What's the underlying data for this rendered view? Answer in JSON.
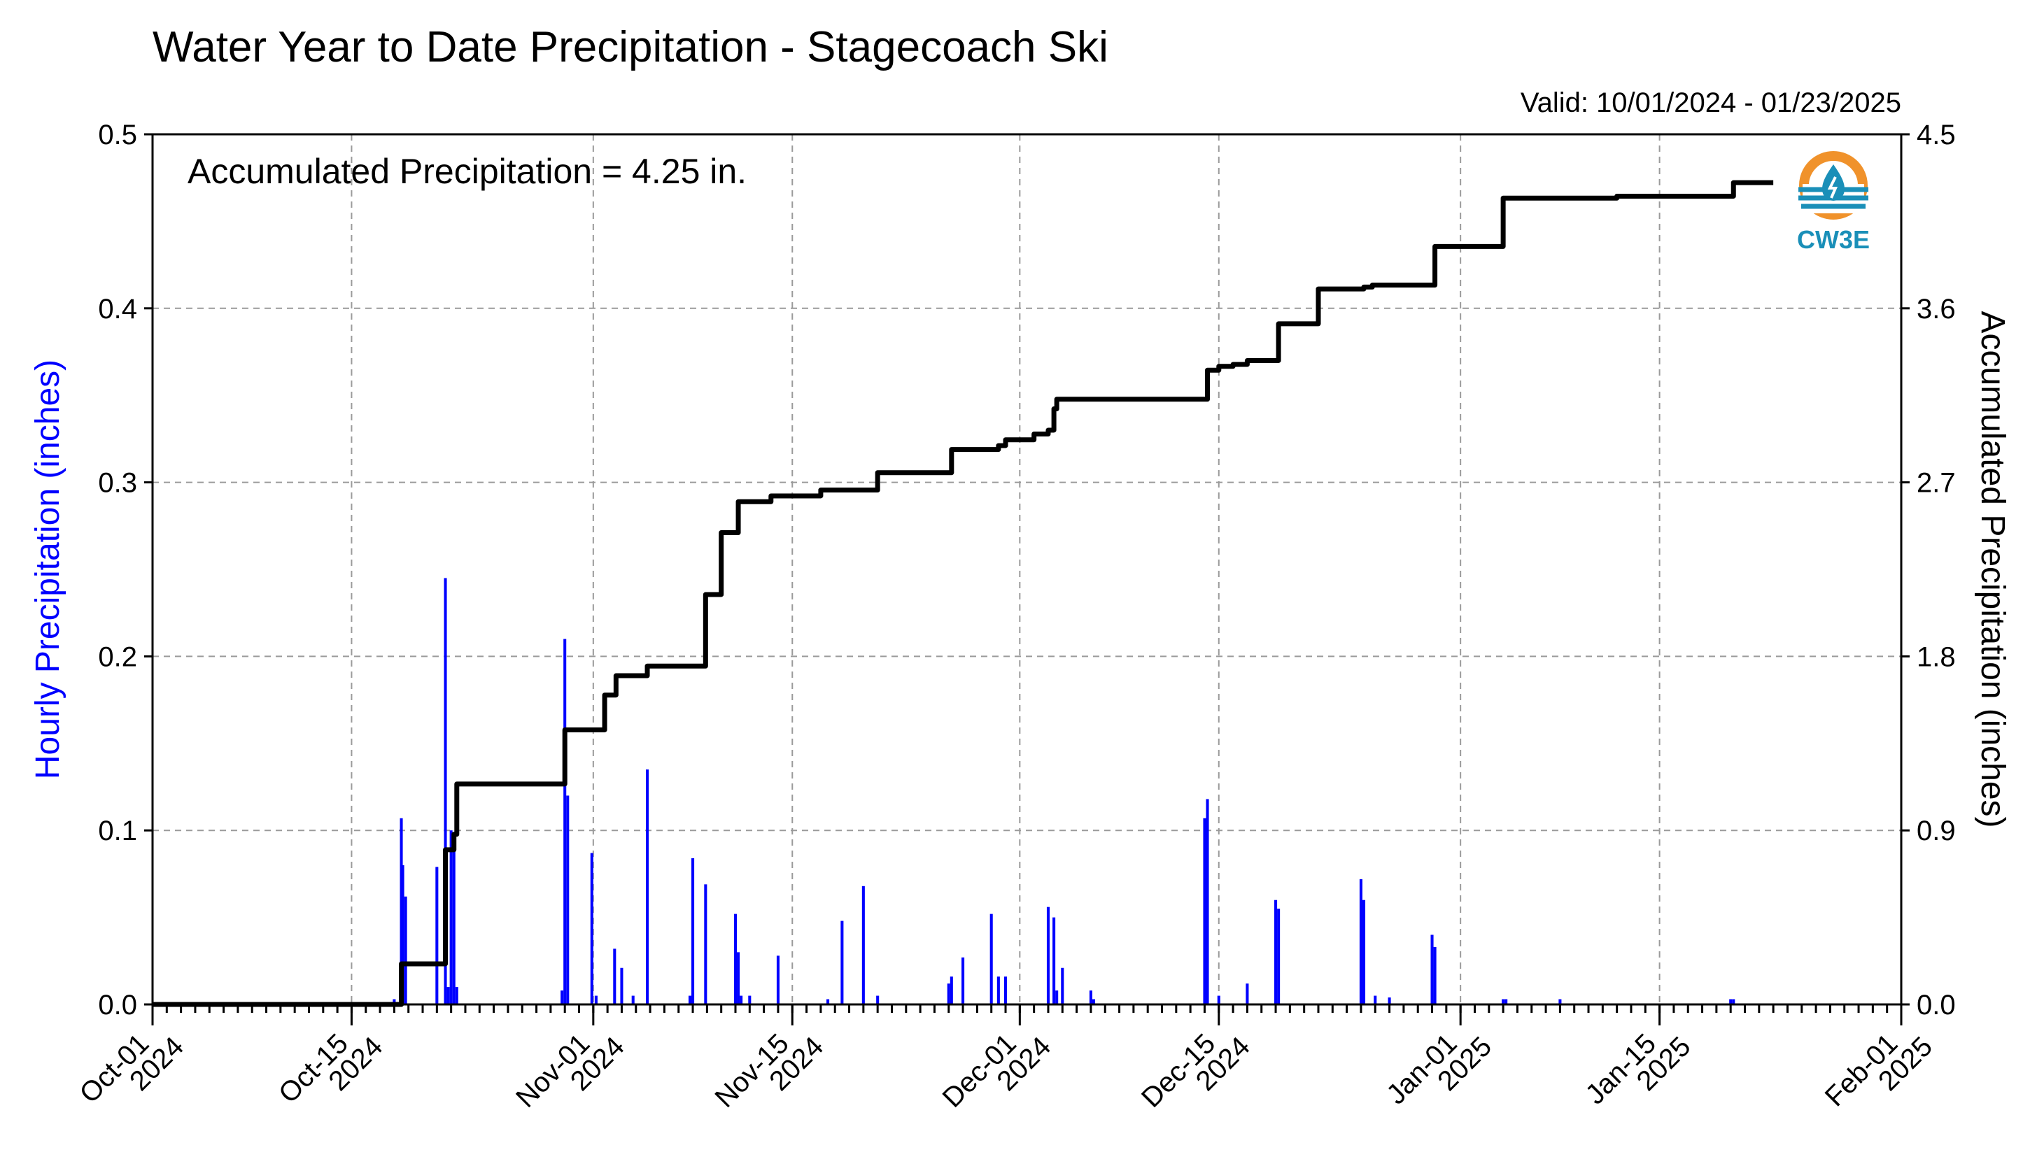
{
  "chart_data": {
    "type": "bar+line",
    "title": "Water Year to Date Precipitation - Stagecoach Ski",
    "subtitle": "Valid: 10/01/2024 - 01/23/2025",
    "annotation": "Accumulated Precipitation = 4.25 in.",
    "ylabel_left": "Hourly Precipitation (inches)",
    "ylabel_right": "Accumulated Precipitation (inches)",
    "ylim_left": [
      0,
      0.5
    ],
    "ylim_right": [
      0,
      4.5
    ],
    "yticks_left": [
      "0.0",
      "0.1",
      "0.2",
      "0.3",
      "0.4",
      "0.5"
    ],
    "yticks_right": [
      "0.0",
      "0.9",
      "1.8",
      "2.7",
      "3.6",
      "4.5"
    ],
    "xlim_days": [
      0,
      123
    ],
    "xticks": [
      {
        "day": 0,
        "l1": "Oct-01",
        "l2": "2024"
      },
      {
        "day": 14,
        "l1": "Oct-15",
        "l2": "2024"
      },
      {
        "day": 31,
        "l1": "Nov-01",
        "l2": "2024"
      },
      {
        "day": 45,
        "l1": "Nov-15",
        "l2": "2024"
      },
      {
        "day": 61,
        "l1": "Dec-01",
        "l2": "2024"
      },
      {
        "day": 75,
        "l1": "Dec-15",
        "l2": "2024"
      },
      {
        "day": 92,
        "l1": "Jan-01",
        "l2": "2025"
      },
      {
        "day": 106,
        "l1": "Jan-15",
        "l2": "2025"
      },
      {
        "day": 123,
        "l1": "Feb-01",
        "l2": "2025"
      }
    ],
    "grid": true,
    "colors": {
      "hourly": "#0000ff",
      "accumulated": "#000000",
      "grid": "#9a9a9a"
    },
    "series": [
      {
        "name": "Hourly Precipitation (inches)",
        "type": "bar",
        "x_days": [
          17.0,
          17.5,
          17.6,
          17.8,
          20.0,
          20.6,
          20.8,
          21.0,
          21.2,
          21.4,
          28.8,
          29.0,
          29.2,
          30.9,
          31.2,
          32.5,
          33.0,
          33.8,
          34.8,
          37.8,
          38.0,
          38.9,
          41.0,
          41.2,
          41.4,
          42.0,
          44.0,
          47.5,
          48.5,
          50.0,
          51.0,
          56.0,
          56.2,
          57.0,
          59.0,
          59.5,
          60.0,
          63.0,
          63.4,
          63.6,
          64.0,
          66.0,
          66.2,
          74.0,
          74.2,
          75.0,
          77.0,
          79.0,
          79.2,
          85.0,
          85.2,
          86.0,
          87.0,
          90.0,
          90.2,
          95.0,
          95.2,
          99.0,
          111.0,
          111.2
        ],
        "y": [
          0.003,
          0.107,
          0.08,
          0.062,
          0.079,
          0.245,
          0.01,
          0.1,
          0.09,
          0.01,
          0.008,
          0.21,
          0.12,
          0.087,
          0.005,
          0.032,
          0.021,
          0.005,
          0.135,
          0.005,
          0.084,
          0.069,
          0.052,
          0.03,
          0.005,
          0.005,
          0.028,
          0.003,
          0.048,
          0.068,
          0.005,
          0.012,
          0.016,
          0.027,
          0.052,
          0.016,
          0.016,
          0.056,
          0.05,
          0.008,
          0.021,
          0.008,
          0.003,
          0.107,
          0.118,
          0.005,
          0.012,
          0.06,
          0.055,
          0.072,
          0.06,
          0.005,
          0.004,
          0.04,
          0.033,
          0.003,
          0.003,
          0.003,
          0.003,
          0.003
        ]
      },
      {
        "name": "Accumulated Precipitation (inches)",
        "type": "step",
        "x_days": [
          0,
          17.0,
          17.5,
          20.0,
          20.6,
          21.2,
          21.4,
          28.8,
          29.0,
          30.9,
          31.8,
          32.6,
          34.8,
          37.8,
          38.9,
          39.6,
          40.0,
          41.2,
          43.5,
          44.0,
          47.0,
          51.0,
          56.0,
          56.2,
          59.0,
          59.5,
          60.0,
          62.0,
          63.0,
          63.4,
          63.6,
          66.0,
          74.0,
          74.2,
          75.0,
          76.0,
          77.0,
          79.0,
          79.2,
          80.0,
          82.0,
          85.0,
          85.2,
          85.8,
          90.0,
          90.2,
          94.0,
          95.0,
          95.2,
          100.0,
          103.0,
          111.0,
          111.2,
          114.0
        ],
        "y": [
          0.0,
          0.0,
          0.21,
          0.21,
          0.8,
          0.88,
          1.14,
          1.14,
          1.42,
          1.42,
          1.6,
          1.7,
          1.75,
          1.75,
          2.12,
          2.12,
          2.44,
          2.6,
          2.63,
          2.63,
          2.66,
          2.75,
          2.75,
          2.87,
          2.87,
          2.89,
          2.92,
          2.95,
          2.97,
          3.08,
          3.13,
          3.13,
          3.13,
          3.28,
          3.3,
          3.31,
          3.33,
          3.33,
          3.52,
          3.52,
          3.7,
          3.7,
          3.71,
          3.72,
          3.72,
          3.92,
          3.92,
          4.17,
          4.17,
          4.17,
          4.18,
          4.18,
          4.25,
          4.25
        ]
      }
    ]
  },
  "logo": {
    "text": "CW3E",
    "ring_color": "#f0922b",
    "wave_color": "#1a8fb8"
  }
}
